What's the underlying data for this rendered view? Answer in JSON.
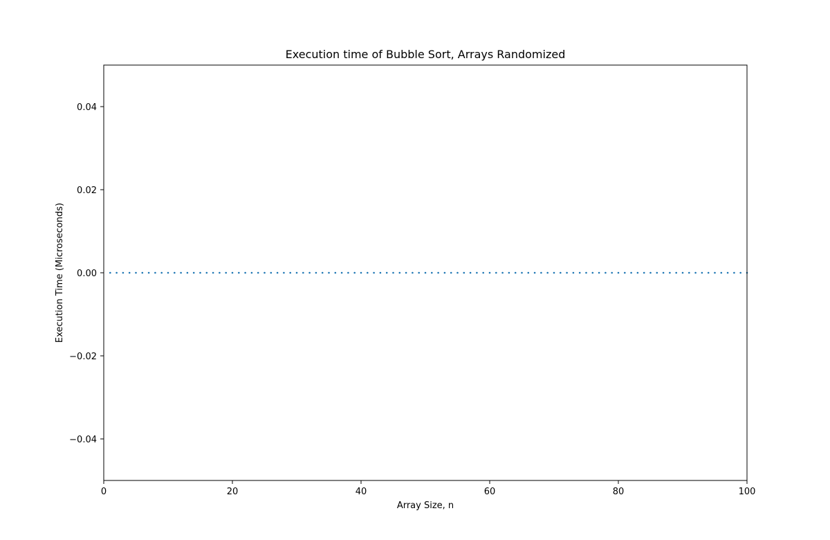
{
  "chart_data": {
    "type": "scatter",
    "title": "Execution time of Bubble Sort, Arrays Randomized",
    "xlabel": "Array Size, n",
    "ylabel": "Execution Time (Microseconds)",
    "xlim": [
      0,
      100
    ],
    "ylim": [
      -0.05,
      0.05
    ],
    "xticks": [
      0,
      20,
      40,
      60,
      80,
      100
    ],
    "xtick_labels": [
      "0",
      "20",
      "40",
      "60",
      "80",
      "100"
    ],
    "yticks": [
      0.04,
      0.02,
      0.0,
      -0.02,
      -0.04
    ],
    "ytick_labels": [
      "0.04",
      "0.02",
      "0.00",
      "−0.02",
      "−0.04"
    ],
    "grid": false,
    "legend": false,
    "series": [
      {
        "color": "#1f77b4",
        "x": [
          1,
          2,
          3,
          4,
          5,
          6,
          7,
          8,
          9,
          10,
          11,
          12,
          13,
          14,
          15,
          16,
          17,
          18,
          19,
          20,
          21,
          22,
          23,
          24,
          25,
          26,
          27,
          28,
          29,
          30,
          31,
          32,
          33,
          34,
          35,
          36,
          37,
          38,
          39,
          40,
          41,
          42,
          43,
          44,
          45,
          46,
          47,
          48,
          49,
          50,
          51,
          52,
          53,
          54,
          55,
          56,
          57,
          58,
          59,
          60,
          61,
          62,
          63,
          64,
          65,
          66,
          67,
          68,
          69,
          70,
          71,
          72,
          73,
          74,
          75,
          76,
          77,
          78,
          79,
          80,
          81,
          82,
          83,
          84,
          85,
          86,
          87,
          88,
          89,
          90,
          91,
          92,
          93,
          94,
          95,
          96,
          97,
          98,
          99,
          100
        ],
        "y": [
          0,
          0,
          0,
          0,
          0,
          0,
          0,
          0,
          0,
          0,
          0,
          0,
          0,
          0,
          0,
          0,
          0,
          0,
          0,
          0,
          0,
          0,
          0,
          0,
          0,
          0,
          0,
          0,
          0,
          0,
          0,
          0,
          0,
          0,
          0,
          0,
          0,
          0,
          0,
          0,
          0,
          0,
          0,
          0,
          0,
          0,
          0,
          0,
          0,
          0,
          0,
          0,
          0,
          0,
          0,
          0,
          0,
          0,
          0,
          0,
          0,
          0,
          0,
          0,
          0,
          0,
          0,
          0,
          0,
          0,
          0,
          0,
          0,
          0,
          0,
          0,
          0,
          0,
          0,
          0,
          0,
          0,
          0,
          0,
          0,
          0,
          0,
          0,
          0,
          0,
          0,
          0,
          0,
          0,
          0,
          0,
          0,
          0,
          0,
          0
        ]
      }
    ]
  }
}
